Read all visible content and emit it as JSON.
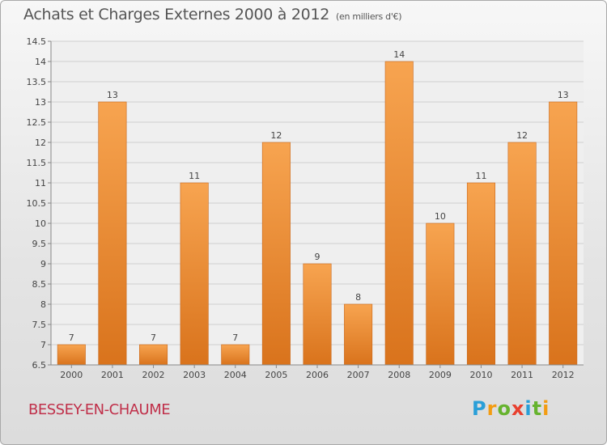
{
  "header": {
    "title": "Achats et Charges Externes 2000 à 2012",
    "subtitle": "(en milliers d'€)"
  },
  "footer": {
    "place": "BESSEY-EN-CHAUME",
    "brand": {
      "letters": [
        "P",
        "r",
        "o",
        "x",
        "i",
        "t",
        "i"
      ],
      "colors": [
        "#2a9fd8",
        "#f39c12",
        "#66b32e",
        "#e8402f",
        "#2a9fd8",
        "#66b32e",
        "#f39c12"
      ]
    }
  },
  "colors": {
    "bar_light": "#f7a450",
    "bar_dark": "#d9731c",
    "grid": "#cfcfcf",
    "axis": "#888888",
    "text": "#444444"
  },
  "chart_data": {
    "type": "bar",
    "title": "Achats et Charges Externes 2000 à 2012",
    "subtitle": "(en milliers d'€)",
    "categories": [
      "2000",
      "2001",
      "2002",
      "2003",
      "2004",
      "2005",
      "2006",
      "2007",
      "2008",
      "2009",
      "2010",
      "2011",
      "2012"
    ],
    "values": [
      7,
      13,
      7,
      11,
      7,
      12,
      9,
      8,
      14,
      10,
      11,
      12,
      13
    ],
    "data_labels": [
      "7",
      "13",
      "7",
      "11",
      "7",
      "12",
      "9",
      "8",
      "14",
      "10",
      "11",
      "12",
      "13"
    ],
    "ylim": [
      6.5,
      14.5
    ],
    "yticks": [
      6.5,
      7,
      7.5,
      8,
      8.5,
      9,
      9.5,
      10,
      10.5,
      11,
      11.5,
      12,
      12.5,
      13,
      13.5,
      14,
      14.5
    ],
    "ytick_labels": [
      "6.5",
      "7",
      "7.5",
      "8",
      "8.5",
      "9",
      "9.5",
      "10",
      "10.5",
      "11",
      "11.5",
      "12",
      "12.5",
      "13",
      "13.5",
      "14",
      "14.5"
    ],
    "grid": true,
    "legend": "none"
  }
}
